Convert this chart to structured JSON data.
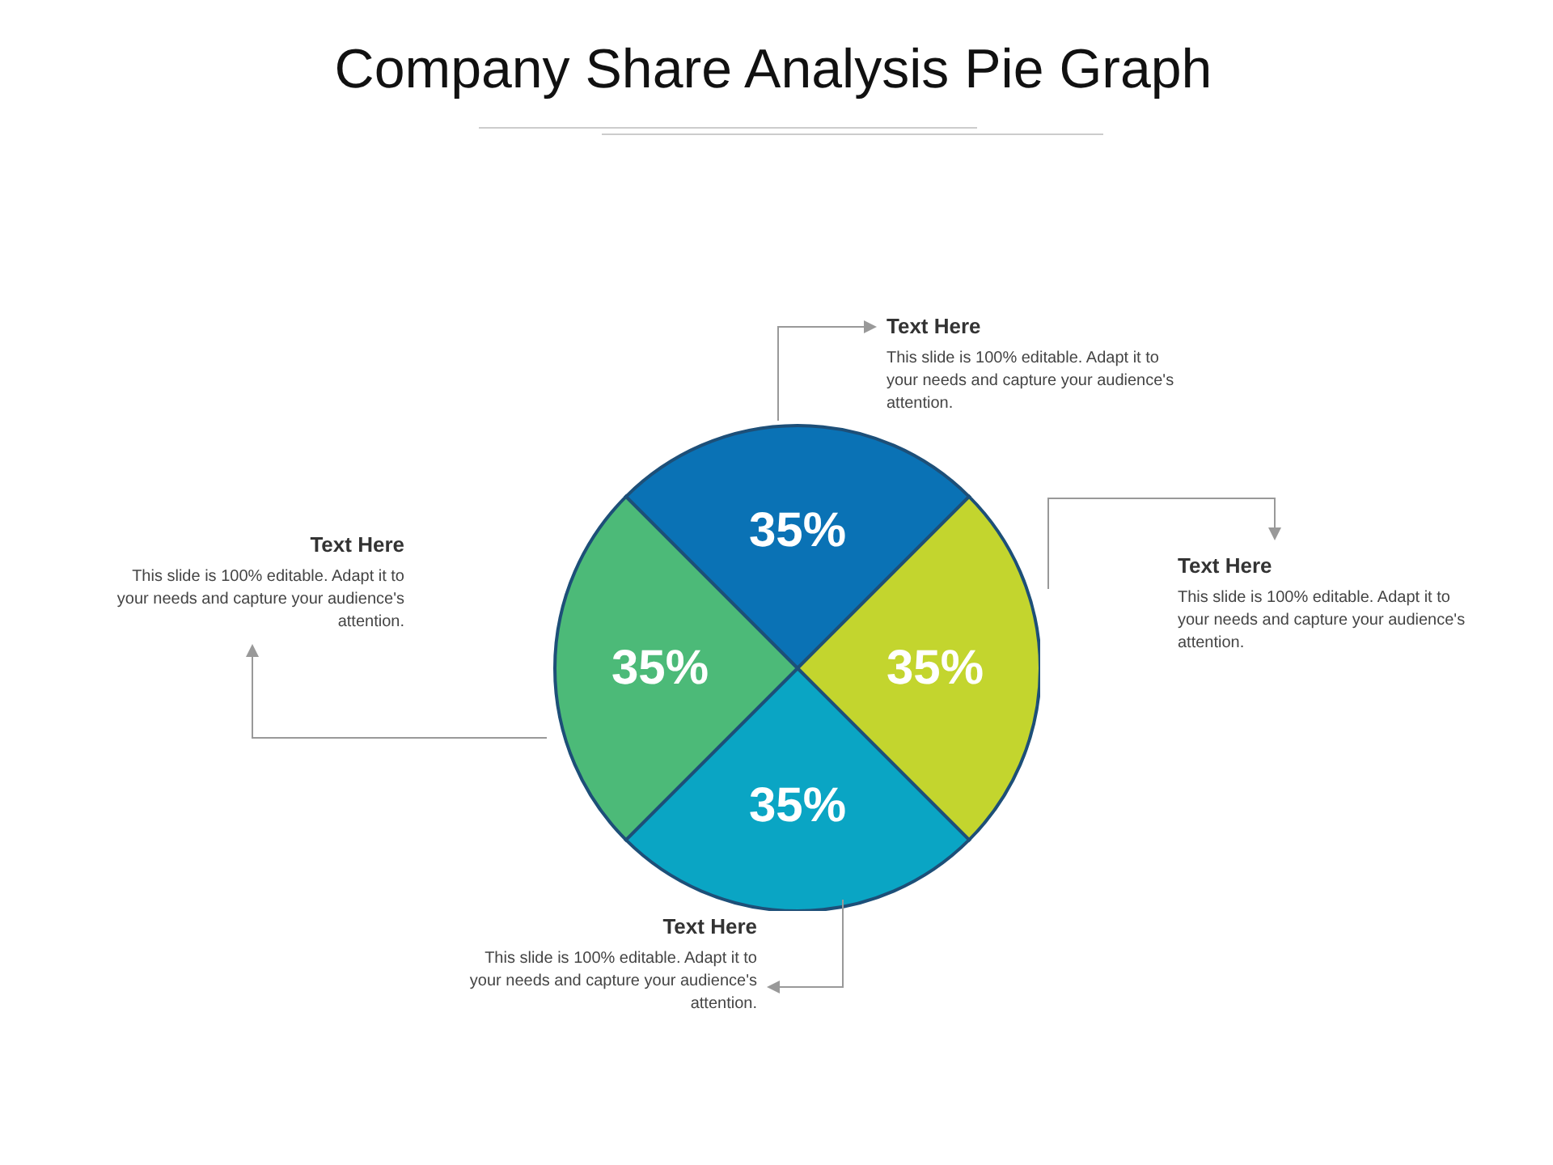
{
  "chart_data": {
    "type": "pie",
    "title": "Company Share Analysis Pie Graph",
    "categories": [
      null,
      null,
      null,
      null
    ],
    "values": [
      35,
      35,
      35,
      35
    ],
    "colors": [
      "#0a72b5",
      "#c3d52e",
      "#0aa5c4",
      "#4cba78"
    ],
    "value_labels": [
      "35%",
      "35%",
      "35%",
      "35%"
    ],
    "annotations": [
      {
        "text": "Text Here"
      },
      {
        "text": "This slide is 100% editable. Adapt it to your needs and capture your audience's attention."
      },
      {
        "text": "Text Here"
      },
      {
        "text": "This slide is 100% editable. Adapt it to your needs and capture your audience's attention."
      },
      {
        "text": "Text Here"
      },
      {
        "text": "This slide is 100% editable. Adapt it to your needs and capture your audience's attention."
      },
      {
        "text": "Text Here"
      },
      {
        "text": "This slide is 100% editable. Adapt it to your needs and capture your audience's attention."
      }
    ]
  }
}
